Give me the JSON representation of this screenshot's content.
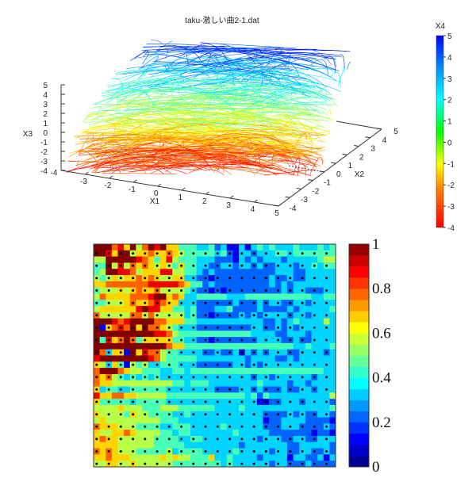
{
  "chart_data": [
    {
      "type": "line3d",
      "title": "taku-激しい曲2-1.dat",
      "xlabel": "X1",
      "ylabel": "X2",
      "zlabel": "X3",
      "color_label": "X4",
      "xlim": [
        -4,
        5
      ],
      "ylim": [
        -4,
        5
      ],
      "zlim": [
        -4,
        5
      ],
      "clim": [
        -4,
        5
      ],
      "x_ticks": [
        "-4",
        "-3",
        "-2",
        "-1",
        "0",
        "1",
        "2",
        "3",
        "4",
        "5"
      ],
      "y_ticks": [
        "-4",
        "-3",
        "-2",
        "-1",
        "0",
        "1",
        "2",
        "3",
        "4",
        "5"
      ],
      "z_ticks": [
        "5",
        "4",
        "3",
        "2",
        "1",
        "0",
        "-1",
        "-2",
        "-3",
        "-4"
      ],
      "color_ticks": [
        "5",
        "4",
        "3",
        "2",
        "1",
        "0",
        "-1",
        "-2",
        "-3",
        "-4"
      ],
      "colormap": "jet",
      "description_of_series": "dense trajectories, X4 high (blue) at top, low (red) at bottom"
    },
    {
      "type": "heatmap",
      "rows": 36,
      "cols": 40,
      "levels": 9,
      "clim": [
        0,
        1
      ],
      "colormap": "jet",
      "color_ticks": [
        "1",
        "0.8",
        "0.6",
        "0.4",
        "0.2",
        "0"
      ],
      "values_digits": [
        "9997869579896644433423113134343334333434",
        "9986995667667654444434213323334434444444",
        "5599999876468544433322213232333233333455",
        "4495857676565464433223323323223332334344",
        "4599887566688554432322222222223332233333",
        "5456566767655663322122222222232232233333",
        "6677777778888876442322222222232323333333",
        "4555656766755554322121222222222323322233",
        "5766667778996763344444333444444444443344",
        "4455567667876633322222232223233223323333",
        "5666666898866443422233422223222232333334",
        "7555557757555553422122223232333323323333",
        "9998789999776664433333333333223234333353",
        "9167879697765433322222222233223232333333",
        "9999999999887544444444444433332233323333",
        "9486797466666443322122222223333223223333",
        "9999999999997664444444444444444443343334",
        "9736619687754433332232231323233322333323",
        "8999999998754444433333333233332232333333",
        "6536415453344433322222233232333333333333",
        "7999765544433443444444444444444444444433",
        "7675434343433333333333333323323333332333",
        "7665555555555443444333333334333323323333",
        "6344334444443333333322223323222322332333",
        "8667766555554444444444444342433333333335",
        "6444443444443333333333333331122333233332",
        "5555655544455544444433334333333333333334",
        "6555546554444334333333333333222232322332",
        "5655555555544433333333333333122333322221",
        "7666555444433444333334333333222333222232",
        "6556676555544344333333343333322222221221",
        "6766555555444433443333333332333223322333",
        "6666555555444443333333332333333322333332",
        "7676555444445344443333343333323322332232",
        "6676665555565655444633433332333313322313",
        "5566556555555444444443433333323322232222"
      ],
      "markers": "black dots on alternating cells"
    }
  ]
}
